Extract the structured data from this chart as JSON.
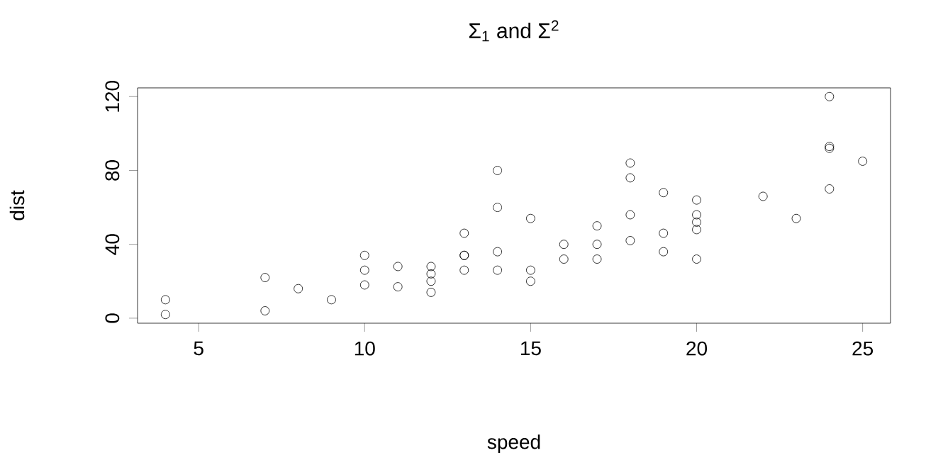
{
  "chart_data": {
    "type": "scatter",
    "title": "Σ$_{1}$ and Σ$^{2}$",
    "xlabel": "speed",
    "ylabel": "dist",
    "marker": "circle",
    "color": "#000000",
    "x": [
      4,
      4,
      7,
      7,
      8,
      9,
      10,
      10,
      10,
      11,
      11,
      12,
      12,
      12,
      12,
      13,
      13,
      13,
      13,
      14,
      14,
      14,
      14,
      15,
      15,
      15,
      16,
      16,
      17,
      17,
      17,
      18,
      18,
      18,
      18,
      19,
      19,
      19,
      20,
      20,
      20,
      20,
      20,
      22,
      23,
      24,
      24,
      24,
      24,
      25
    ],
    "values": [
      2,
      10,
      4,
      22,
      16,
      10,
      18,
      26,
      34,
      17,
      28,
      14,
      20,
      24,
      28,
      26,
      34,
      34,
      46,
      26,
      36,
      60,
      80,
      20,
      26,
      54,
      32,
      40,
      32,
      40,
      50,
      42,
      56,
      76,
      84,
      36,
      46,
      68,
      32,
      48,
      52,
      56,
      64,
      66,
      54,
      70,
      92,
      93,
      120,
      85
    ],
    "xlim": [
      3.16,
      25.84
    ],
    "ylim": [
      -2.72,
      124.72
    ],
    "xticks": [
      5,
      10,
      15,
      20,
      25
    ],
    "yticks": [
      0,
      40,
      80,
      120
    ]
  }
}
